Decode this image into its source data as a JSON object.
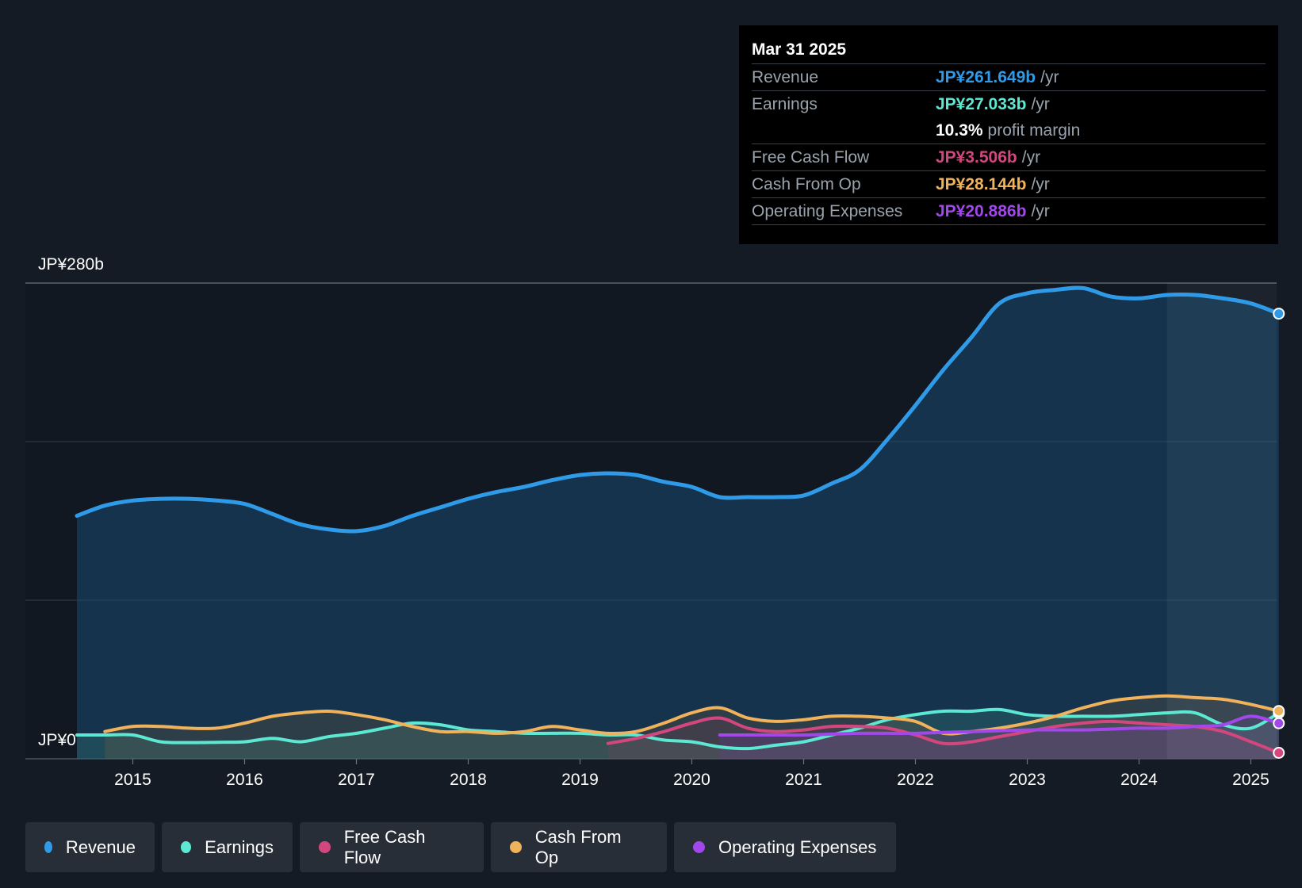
{
  "chart_data": {
    "type": "area",
    "y_axis_labels": {
      "top": "JP¥280b",
      "bottom": "JP¥0"
    },
    "ylim": [
      0,
      280
    ],
    "x_ticks": [
      "2015",
      "2016",
      "2017",
      "2018",
      "2019",
      "2020",
      "2021",
      "2022",
      "2023",
      "2024",
      "2025"
    ],
    "series": [
      {
        "name": "Revenue",
        "color": "#2f9be8",
        "points": [
          [
            2014.5,
            143
          ],
          [
            2014.75,
            149
          ],
          [
            2015.0,
            152
          ],
          [
            2015.25,
            153
          ],
          [
            2015.5,
            153
          ],
          [
            2015.75,
            152
          ],
          [
            2016.0,
            150
          ],
          [
            2016.25,
            144
          ],
          [
            2016.5,
            138
          ],
          [
            2016.75,
            135
          ],
          [
            2017.0,
            134
          ],
          [
            2017.25,
            137
          ],
          [
            2017.5,
            143
          ],
          [
            2017.75,
            148
          ],
          [
            2018.0,
            153
          ],
          [
            2018.25,
            157
          ],
          [
            2018.5,
            160
          ],
          [
            2018.75,
            164
          ],
          [
            2019.0,
            167
          ],
          [
            2019.25,
            168
          ],
          [
            2019.5,
            167
          ],
          [
            2019.75,
            163
          ],
          [
            2020.0,
            160
          ],
          [
            2020.25,
            154
          ],
          [
            2020.5,
            154
          ],
          [
            2020.75,
            154
          ],
          [
            2021.0,
            155
          ],
          [
            2021.25,
            162
          ],
          [
            2021.5,
            170
          ],
          [
            2021.75,
            188
          ],
          [
            2022.0,
            208
          ],
          [
            2022.25,
            229
          ],
          [
            2022.5,
            248
          ],
          [
            2022.75,
            268
          ],
          [
            2023.0,
            274
          ],
          [
            2023.25,
            276
          ],
          [
            2023.5,
            277
          ],
          [
            2023.75,
            272
          ],
          [
            2024.0,
            271
          ],
          [
            2024.25,
            273
          ],
          [
            2024.5,
            273
          ],
          [
            2024.75,
            271
          ],
          [
            2025.0,
            268
          ],
          [
            2025.25,
            262
          ]
        ]
      },
      {
        "name": "Earnings",
        "color": "#5ce8d2",
        "points": [
          [
            2014.5,
            14
          ],
          [
            2014.75,
            14
          ],
          [
            2015.0,
            14
          ],
          [
            2015.25,
            10
          ],
          [
            2015.5,
            9.5
          ],
          [
            2015.75,
            9.7
          ],
          [
            2016.0,
            10
          ],
          [
            2016.25,
            12
          ],
          [
            2016.5,
            10
          ],
          [
            2016.75,
            13
          ],
          [
            2017.0,
            15
          ],
          [
            2017.25,
            18
          ],
          [
            2017.5,
            21
          ],
          [
            2017.75,
            20
          ],
          [
            2018.0,
            17
          ],
          [
            2018.25,
            16
          ],
          [
            2018.5,
            15
          ],
          [
            2018.75,
            15
          ],
          [
            2019.0,
            15
          ],
          [
            2019.25,
            14
          ],
          [
            2019.5,
            14
          ],
          [
            2019.75,
            11
          ],
          [
            2020.0,
            10
          ],
          [
            2020.25,
            7
          ],
          [
            2020.5,
            6
          ],
          [
            2020.75,
            8
          ],
          [
            2021.0,
            10
          ],
          [
            2021.25,
            14
          ],
          [
            2021.5,
            18
          ],
          [
            2021.75,
            23
          ],
          [
            2022.0,
            26
          ],
          [
            2022.25,
            28
          ],
          [
            2022.5,
            28
          ],
          [
            2022.75,
            29
          ],
          [
            2023.0,
            26
          ],
          [
            2023.25,
            25
          ],
          [
            2023.5,
            25
          ],
          [
            2023.75,
            25
          ],
          [
            2024.0,
            26
          ],
          [
            2024.25,
            27
          ],
          [
            2024.5,
            27
          ],
          [
            2024.75,
            20
          ],
          [
            2025.0,
            18
          ],
          [
            2025.25,
            27.0
          ]
        ]
      },
      {
        "name": "Free Cash Flow",
        "color": "#d4477e",
        "points": [
          [
            2019.25,
            9
          ],
          [
            2019.5,
            12
          ],
          [
            2019.75,
            16
          ],
          [
            2020.0,
            21
          ],
          [
            2020.25,
            24
          ],
          [
            2020.5,
            18
          ],
          [
            2020.75,
            16
          ],
          [
            2021.0,
            17
          ],
          [
            2021.25,
            19
          ],
          [
            2021.5,
            19
          ],
          [
            2021.75,
            18
          ],
          [
            2022.0,
            14
          ],
          [
            2022.25,
            9
          ],
          [
            2022.5,
            10
          ],
          [
            2022.75,
            13
          ],
          [
            2023.0,
            16
          ],
          [
            2023.25,
            19
          ],
          [
            2023.5,
            21
          ],
          [
            2023.75,
            22
          ],
          [
            2024.0,
            21
          ],
          [
            2024.25,
            20
          ],
          [
            2024.5,
            19
          ],
          [
            2024.75,
            16
          ],
          [
            2025.0,
            10
          ],
          [
            2025.25,
            3.5
          ]
        ]
      },
      {
        "name": "Cash From Op",
        "color": "#f0b25a",
        "points": [
          [
            2014.75,
            16
          ],
          [
            2015.0,
            19
          ],
          [
            2015.25,
            19
          ],
          [
            2015.5,
            18
          ],
          [
            2015.75,
            18
          ],
          [
            2016.0,
            21
          ],
          [
            2016.25,
            25
          ],
          [
            2016.5,
            27
          ],
          [
            2016.75,
            28
          ],
          [
            2017.0,
            26
          ],
          [
            2017.25,
            23
          ],
          [
            2017.5,
            19
          ],
          [
            2017.75,
            16
          ],
          [
            2018.0,
            16
          ],
          [
            2018.25,
            15
          ],
          [
            2018.5,
            16
          ],
          [
            2018.75,
            19
          ],
          [
            2019.0,
            17
          ],
          [
            2019.25,
            15
          ],
          [
            2019.5,
            16
          ],
          [
            2019.75,
            21
          ],
          [
            2020.0,
            27
          ],
          [
            2020.25,
            30
          ],
          [
            2020.5,
            24
          ],
          [
            2020.75,
            22
          ],
          [
            2021.0,
            23
          ],
          [
            2021.25,
            25
          ],
          [
            2021.5,
            25
          ],
          [
            2021.75,
            24
          ],
          [
            2022.0,
            22
          ],
          [
            2022.25,
            15
          ],
          [
            2022.5,
            16
          ],
          [
            2022.75,
            18
          ],
          [
            2023.0,
            21
          ],
          [
            2023.25,
            25
          ],
          [
            2023.5,
            30
          ],
          [
            2023.75,
            34
          ],
          [
            2024.0,
            36
          ],
          [
            2024.25,
            37
          ],
          [
            2024.5,
            36
          ],
          [
            2024.75,
            35
          ],
          [
            2025.0,
            32
          ],
          [
            2025.25,
            28.1
          ]
        ]
      },
      {
        "name": "Operating Expenses",
        "color": "#a247ec",
        "points": [
          [
            2020.25,
            14
          ],
          [
            2020.5,
            14
          ],
          [
            2020.75,
            14
          ],
          [
            2021.0,
            14
          ],
          [
            2021.25,
            14.5
          ],
          [
            2021.5,
            15
          ],
          [
            2021.75,
            15
          ],
          [
            2022.0,
            15
          ],
          [
            2022.25,
            15.5
          ],
          [
            2022.5,
            16
          ],
          [
            2022.75,
            16.5
          ],
          [
            2023.0,
            17
          ],
          [
            2023.25,
            17
          ],
          [
            2023.5,
            17
          ],
          [
            2023.75,
            17.5
          ],
          [
            2024.0,
            18
          ],
          [
            2024.25,
            18
          ],
          [
            2024.5,
            19
          ],
          [
            2024.75,
            20
          ],
          [
            2025.0,
            25
          ],
          [
            2025.25,
            20.9
          ]
        ]
      }
    ],
    "highlight_start": 2024.25,
    "tooltip": {
      "date": "Mar 31 2025",
      "rows": [
        {
          "label": "Revenue",
          "value": "JP¥261.649b",
          "unit": "/yr",
          "color": "#2f9be8"
        },
        {
          "label": "Earnings",
          "value": "JP¥27.033b",
          "unit": "/yr",
          "color": "#5ce8d2"
        },
        {
          "label": "",
          "value": "10.3%",
          "unit": "profit margin",
          "color": "#ffffff"
        },
        {
          "label": "Free Cash Flow",
          "value": "JP¥3.506b",
          "unit": "/yr",
          "color": "#d4477e"
        },
        {
          "label": "Cash From Op",
          "value": "JP¥28.144b",
          "unit": "/yr",
          "color": "#f0b25a"
        },
        {
          "label": "Operating Expenses",
          "value": "JP¥20.886b",
          "unit": "/yr",
          "color": "#a247ec"
        }
      ]
    },
    "legend": [
      {
        "label": "Revenue",
        "color": "#2f9be8"
      },
      {
        "label": "Earnings",
        "color": "#5ce8d2"
      },
      {
        "label": "Free Cash Flow",
        "color": "#d4477e"
      },
      {
        "label": "Cash From Op",
        "color": "#f0b25a"
      },
      {
        "label": "Operating Expenses",
        "color": "#a247ec"
      }
    ]
  }
}
